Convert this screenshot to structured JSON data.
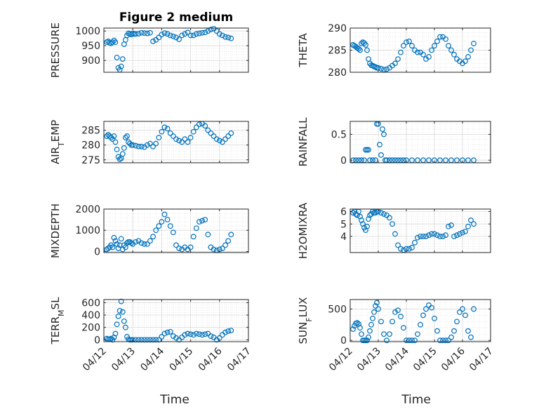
{
  "figure": {
    "title": "Figure 2 medium"
  },
  "style": {
    "marker_color": "#0072BD",
    "axis_color": "#262626",
    "grid_color": "#dcdcdc"
  },
  "chart_data": [
    {
      "type": "scatter",
      "ylabel": "PRESSURE",
      "xlim": [
        0,
        5
      ],
      "ylim": [
        860,
        1010
      ],
      "yticks": [
        900,
        950,
        1000
      ],
      "xticks": [
        0,
        1,
        2,
        3,
        4,
        5
      ],
      "show_xticklabels": false,
      "grid": true,
      "x": [
        0.1,
        0.15,
        0.2,
        0.25,
        0.3,
        0.35,
        0.4,
        0.45,
        0.5,
        0.55,
        0.6,
        0.65,
        0.7,
        0.75,
        0.8,
        0.85,
        0.9,
        0.95,
        1.0,
        1.05,
        1.1,
        1.2,
        1.3,
        1.4,
        1.5,
        1.6,
        1.7,
        1.8,
        1.9,
        2.0,
        2.1,
        2.2,
        2.3,
        2.4,
        2.5,
        2.6,
        2.7,
        2.8,
        2.9,
        3.0,
        3.1,
        3.2,
        3.3,
        3.4,
        3.5,
        3.6,
        3.7,
        3.8,
        3.9,
        4.0,
        4.1,
        4.2,
        4.3,
        4.4
      ],
      "y": [
        962,
        965,
        960,
        958,
        962,
        968,
        962,
        910,
        875,
        868,
        880,
        905,
        955,
        970,
        985,
        992,
        990,
        988,
        992,
        990,
        990,
        991,
        994,
        993,
        992,
        994,
        965,
        970,
        978,
        988,
        993,
        990,
        985,
        982,
        978,
        972,
        985,
        990,
        995,
        985,
        985,
        990,
        992,
        994,
        995,
        1000,
        1005,
        1008,
        1000,
        990,
        985,
        980,
        978,
        975
      ]
    },
    {
      "type": "scatter",
      "ylabel": "THETA",
      "xlim": [
        0,
        5
      ],
      "ylim": [
        280,
        290
      ],
      "yticks": [
        280,
        285,
        290
      ],
      "xticks": [
        0,
        1,
        2,
        3,
        4,
        5
      ],
      "show_xticklabels": false,
      "grid": true,
      "x": [
        0.1,
        0.15,
        0.2,
        0.25,
        0.3,
        0.35,
        0.4,
        0.45,
        0.5,
        0.55,
        0.6,
        0.65,
        0.7,
        0.75,
        0.8,
        0.85,
        0.9,
        0.95,
        1.0,
        1.1,
        1.2,
        1.3,
        1.4,
        1.5,
        1.6,
        1.7,
        1.8,
        1.9,
        2.0,
        2.1,
        2.2,
        2.3,
        2.4,
        2.5,
        2.6,
        2.7,
        2.8,
        2.9,
        3.0,
        3.1,
        3.2,
        3.3,
        3.4,
        3.5,
        3.6,
        3.7,
        3.8,
        3.9,
        4.0,
        4.1,
        4.2,
        4.3,
        4.4
      ],
      "y": [
        286.2,
        286.0,
        285.8,
        285.5,
        285.3,
        285.0,
        286.5,
        286.8,
        286.6,
        286.2,
        285.0,
        283.0,
        282.0,
        281.6,
        281.5,
        281.3,
        281.2,
        281.0,
        281.0,
        280.8,
        280.6,
        280.7,
        281.0,
        281.5,
        282.0,
        283.0,
        284.5,
        286.0,
        286.8,
        287.0,
        286.0,
        285.0,
        284.5,
        284.5,
        284.0,
        283.0,
        283.5,
        285.0,
        286.0,
        287.0,
        288.0,
        288.0,
        287.5,
        286.0,
        285.0,
        284.0,
        283.0,
        282.5,
        282.0,
        282.5,
        283.5,
        285.0,
        286.5
      ]
    },
    {
      "type": "scatter",
      "ylabel": "AIR_TEMP",
      "xlim": [
        0,
        5
      ],
      "ylim": [
        274,
        288
      ],
      "yticks": [
        275,
        280,
        285
      ],
      "xticks": [
        0,
        1,
        2,
        3,
        4,
        5
      ],
      "show_xticklabels": false,
      "grid": true,
      "x": [
        0.1,
        0.15,
        0.2,
        0.25,
        0.3,
        0.35,
        0.4,
        0.45,
        0.5,
        0.55,
        0.6,
        0.65,
        0.7,
        0.75,
        0.8,
        0.85,
        0.9,
        0.95,
        1.0,
        1.1,
        1.2,
        1.3,
        1.4,
        1.5,
        1.6,
        1.7,
        1.8,
        1.9,
        2.0,
        2.1,
        2.2,
        2.3,
        2.4,
        2.5,
        2.6,
        2.7,
        2.8,
        2.9,
        3.0,
        3.1,
        3.2,
        3.3,
        3.4,
        3.5,
        3.6,
        3.7,
        3.8,
        3.9,
        4.0,
        4.1,
        4.2,
        4.3,
        4.4
      ],
      "y": [
        283.0,
        283.5,
        283.0,
        282.5,
        282.0,
        283.0,
        281.0,
        278.5,
        276.0,
        275.2,
        275.5,
        277.0,
        279.0,
        282.5,
        283.0,
        281.0,
        280.5,
        280.0,
        280.0,
        279.8,
        279.5,
        279.5,
        279.3,
        280.0,
        280.5,
        279.5,
        280.5,
        282.5,
        284.5,
        286.0,
        285.5,
        284.0,
        283.0,
        282.0,
        281.5,
        281.0,
        282.0,
        281.0,
        282.5,
        284.5,
        286.0,
        287.0,
        287.2,
        286.5,
        285.0,
        284.0,
        283.0,
        282.0,
        281.5,
        281.0,
        282.0,
        283.0,
        284.0
      ]
    },
    {
      "type": "scatter",
      "ylabel": "RAINFALL",
      "xlim": [
        0,
        5
      ],
      "ylim": [
        -0.05,
        0.75
      ],
      "yticks": [
        0,
        0.5
      ],
      "xticks": [
        0,
        1,
        2,
        3,
        4,
        5
      ],
      "show_xticklabels": false,
      "grid": true,
      "x": [
        0.1,
        0.2,
        0.3,
        0.4,
        0.5,
        0.55,
        0.6,
        0.65,
        0.7,
        0.8,
        0.9,
        0.95,
        1.0,
        1.05,
        1.1,
        1.15,
        1.2,
        1.25,
        1.3,
        1.4,
        1.5,
        1.6,
        1.7,
        1.8,
        1.9,
        2.0,
        2.2,
        2.4,
        2.6,
        2.8,
        3.0,
        3.2,
        3.4,
        3.6,
        3.8,
        4.0,
        4.2,
        4.4
      ],
      "y": [
        0,
        0,
        0,
        0,
        0,
        0.2,
        0.2,
        0.2,
        0,
        0,
        0,
        0.7,
        0.7,
        0.3,
        0.1,
        0.6,
        0.5,
        0,
        0,
        0,
        0,
        0,
        0,
        0,
        0,
        0,
        0,
        0,
        0,
        0,
        0,
        0,
        0,
        0,
        0,
        0,
        0,
        0
      ]
    },
    {
      "type": "scatter",
      "ylabel": "MIXDEPTH",
      "xlim": [
        0,
        5
      ],
      "ylim": [
        -50,
        2000
      ],
      "yticks": [
        0,
        1000,
        2000
      ],
      "xticks": [
        0,
        1,
        2,
        3,
        4,
        5
      ],
      "show_xticklabels": false,
      "grid": true,
      "x": [
        0.1,
        0.15,
        0.2,
        0.25,
        0.3,
        0.35,
        0.4,
        0.45,
        0.5,
        0.55,
        0.6,
        0.65,
        0.7,
        0.75,
        0.8,
        0.85,
        0.9,
        0.95,
        1.0,
        1.1,
        1.2,
        1.3,
        1.4,
        1.5,
        1.6,
        1.7,
        1.8,
        1.9,
        2.0,
        2.1,
        2.2,
        2.3,
        2.4,
        2.5,
        2.6,
        2.7,
        2.8,
        2.9,
        3.0,
        3.1,
        3.2,
        3.3,
        3.4,
        3.5,
        3.6,
        3.7,
        3.8,
        3.9,
        4.0,
        4.1,
        4.2,
        4.3,
        4.4
      ],
      "y": [
        100,
        150,
        200,
        300,
        200,
        650,
        500,
        350,
        150,
        300,
        600,
        100,
        300,
        200,
        400,
        450,
        450,
        400,
        350,
        450,
        500,
        400,
        350,
        350,
        500,
        700,
        1000,
        1200,
        1400,
        1750,
        1500,
        1200,
        900,
        300,
        150,
        100,
        200,
        100,
        200,
        700,
        1100,
        1400,
        1450,
        1500,
        800,
        200,
        100,
        50,
        100,
        150,
        300,
        500,
        800
      ]
    },
    {
      "type": "scatter",
      "ylabel": "H2OMIXRA",
      "xlim": [
        0,
        5
      ],
      "ylim": [
        2.7,
        6.2
      ],
      "yticks": [
        4,
        5,
        6
      ],
      "xticks": [
        0,
        1,
        2,
        3,
        4,
        5
      ],
      "show_xticklabels": false,
      "grid": true,
      "x": [
        0.1,
        0.15,
        0.2,
        0.25,
        0.3,
        0.35,
        0.4,
        0.45,
        0.5,
        0.55,
        0.6,
        0.65,
        0.7,
        0.75,
        0.8,
        0.85,
        0.9,
        0.95,
        1.0,
        1.1,
        1.2,
        1.3,
        1.4,
        1.5,
        1.6,
        1.7,
        1.8,
        1.9,
        2.0,
        2.1,
        2.2,
        2.3,
        2.4,
        2.5,
        2.6,
        2.7,
        2.8,
        2.9,
        3.0,
        3.1,
        3.2,
        3.3,
        3.4,
        3.5,
        3.6,
        3.7,
        3.8,
        3.9,
        4.0,
        4.1,
        4.2,
        4.3,
        4.4
      ],
      "y": [
        5.9,
        6.0,
        5.8,
        5.7,
        6.0,
        5.6,
        5.3,
        5.0,
        4.7,
        4.5,
        4.8,
        5.4,
        5.7,
        5.8,
        6.0,
        5.9,
        5.9,
        6.0,
        6.0,
        5.9,
        5.8,
        5.7,
        5.5,
        5.0,
        4.2,
        3.3,
        3.0,
        2.9,
        3.0,
        3.0,
        3.1,
        3.5,
        3.9,
        4.0,
        4.0,
        4.0,
        4.1,
        4.2,
        4.2,
        4.1,
        4.0,
        4.0,
        4.1,
        4.8,
        4.9,
        4.0,
        4.1,
        4.2,
        4.3,
        4.4,
        4.8,
        5.3,
        5.0
      ]
    },
    {
      "type": "scatter",
      "ylabel": "TERR_MSL",
      "xlim": [
        0,
        5
      ],
      "ylim": [
        -30,
        650
      ],
      "yticks": [
        0,
        200,
        400,
        600
      ],
      "xticks": [
        0,
        1,
        2,
        3,
        4,
        5
      ],
      "xticklabels": [
        "04/12",
        "04/13",
        "04/14",
        "04/15",
        "04/16",
        "04/17"
      ],
      "show_xticklabels": true,
      "xlabel": "Time",
      "grid": true,
      "x": [
        0.1,
        0.15,
        0.2,
        0.25,
        0.3,
        0.35,
        0.4,
        0.45,
        0.5,
        0.55,
        0.6,
        0.65,
        0.7,
        0.75,
        0.8,
        0.85,
        0.9,
        0.95,
        1.0,
        1.1,
        1.2,
        1.3,
        1.4,
        1.5,
        1.6,
        1.7,
        1.8,
        1.9,
        2.0,
        2.1,
        2.2,
        2.3,
        2.4,
        2.5,
        2.6,
        2.7,
        2.8,
        2.9,
        3.0,
        3.1,
        3.2,
        3.3,
        3.4,
        3.5,
        3.6,
        3.7,
        3.8,
        3.9,
        4.0,
        4.1,
        4.2,
        4.3,
        4.4
      ],
      "y": [
        20,
        10,
        10,
        20,
        0,
        40,
        100,
        250,
        380,
        470,
        620,
        450,
        300,
        200,
        50,
        10,
        0,
        0,
        0,
        0,
        0,
        0,
        0,
        0,
        0,
        0,
        0,
        0,
        50,
        100,
        120,
        130,
        60,
        30,
        0,
        40,
        80,
        100,
        90,
        80,
        100,
        90,
        80,
        90,
        100,
        60,
        40,
        0,
        30,
        80,
        120,
        140,
        150
      ]
    },
    {
      "type": "scatter",
      "ylabel": "SUN_FLUX",
      "xlim": [
        0,
        5
      ],
      "ylim": [
        -20,
        650
      ],
      "yticks": [
        0,
        500
      ],
      "xticks": [
        0,
        1,
        2,
        3,
        4,
        5
      ],
      "xticklabels": [
        "04/12",
        "04/13",
        "04/14",
        "04/15",
        "04/16",
        "04/17"
      ],
      "show_xticklabels": true,
      "xlabel": "Time",
      "grid": true,
      "x": [
        0.1,
        0.15,
        0.2,
        0.25,
        0.3,
        0.35,
        0.4,
        0.45,
        0.5,
        0.55,
        0.6,
        0.65,
        0.7,
        0.75,
        0.8,
        0.85,
        0.9,
        0.95,
        1.0,
        1.1,
        1.2,
        1.3,
        1.4,
        1.5,
        1.6,
        1.7,
        1.8,
        1.9,
        2.0,
        2.1,
        2.2,
        2.3,
        2.4,
        2.5,
        2.6,
        2.7,
        2.8,
        2.9,
        3.0,
        3.1,
        3.2,
        3.3,
        3.4,
        3.5,
        3.6,
        3.7,
        3.8,
        3.9,
        4.0,
        4.1,
        4.2,
        4.3,
        4.4
      ],
      "y": [
        180,
        230,
        270,
        280,
        260,
        200,
        100,
        0,
        0,
        0,
        0,
        50,
        150,
        250,
        350,
        450,
        550,
        600,
        500,
        300,
        100,
        0,
        100,
        300,
        450,
        480,
        380,
        200,
        0,
        0,
        0,
        0,
        100,
        250,
        400,
        500,
        560,
        520,
        350,
        150,
        0,
        0,
        0,
        0,
        50,
        150,
        300,
        450,
        500,
        400,
        150,
        50,
        500
      ]
    }
  ]
}
